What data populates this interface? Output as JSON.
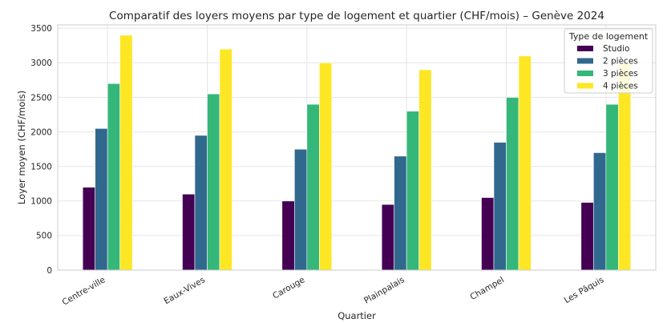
{
  "chart_data": {
    "type": "bar",
    "title": "Comparatif des loyers moyens par type de logement et quartier (CHF/mois) – Genève 2024",
    "xlabel": "Quartier",
    "ylabel": "Loyer moyen (CHF/mois)",
    "ylim": [
      0,
      3550
    ],
    "yticks": [
      0,
      500,
      1000,
      1500,
      2000,
      2500,
      3000,
      3500
    ],
    "grid": true,
    "legend_title": "Type de logement",
    "legend_position": "top-right",
    "categories": [
      "Centre-ville",
      "Eaux-Vives",
      "Carouge",
      "Plainpalais",
      "Champel",
      "Les Pâquis"
    ],
    "series": [
      {
        "name": "Studio",
        "color": "#440154",
        "values": [
          1200,
          1100,
          1000,
          950,
          1050,
          980
        ]
      },
      {
        "name": "2 pièces",
        "color": "#31688e",
        "values": [
          2050,
          1950,
          1750,
          1650,
          1850,
          1700
        ]
      },
      {
        "name": "3 pièces",
        "color": "#35b779",
        "values": [
          2700,
          2550,
          2400,
          2300,
          2500,
          2400
        ]
      },
      {
        "name": "4 pièces",
        "color": "#fde725",
        "values": [
          3400,
          3200,
          3000,
          2900,
          3100,
          3000
        ]
      }
    ]
  }
}
